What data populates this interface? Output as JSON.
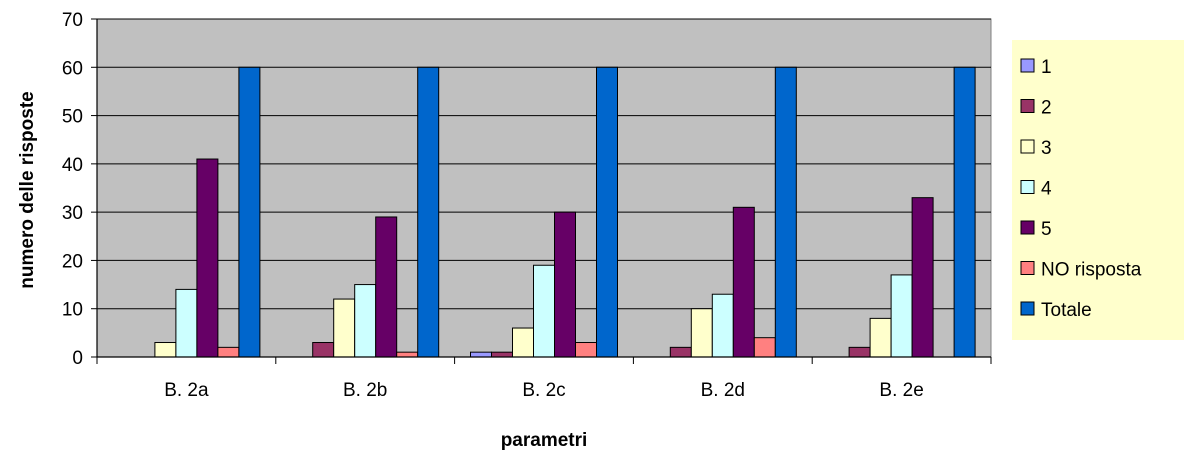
{
  "chart_data": {
    "type": "bar",
    "title": "",
    "xlabel": "parametri",
    "ylabel": "numero delle risposte",
    "ylim": [
      0,
      70
    ],
    "yticks": [
      0,
      10,
      20,
      30,
      40,
      50,
      60,
      70
    ],
    "grid": true,
    "legend_position": "right",
    "categories": [
      "B. 2a",
      "B. 2b",
      "B. 2c",
      "B. 2d",
      "B. 2e"
    ],
    "series": [
      {
        "name": "1",
        "color": "#9999ff",
        "values": [
          0,
          0,
          1,
          0,
          0
        ]
      },
      {
        "name": "2",
        "color": "#993366",
        "values": [
          0,
          3,
          1,
          2,
          2
        ]
      },
      {
        "name": "3",
        "color": "#ffffcc",
        "values": [
          3,
          12,
          6,
          10,
          8
        ]
      },
      {
        "name": "4",
        "color": "#ccffff",
        "values": [
          14,
          15,
          19,
          13,
          17
        ]
      },
      {
        "name": "5",
        "color": "#660066",
        "values": [
          41,
          29,
          30,
          31,
          33
        ]
      },
      {
        "name": "NO risposta",
        "color": "#ff8080",
        "values": [
          2,
          1,
          3,
          4,
          0
        ]
      },
      {
        "name": "Totale",
        "color": "#0066cc",
        "values": [
          60,
          60,
          60,
          60,
          60
        ]
      }
    ],
    "colors": {
      "plot_background": "#c0c0c0",
      "legend_background": "#ffffcc",
      "gridline": "#000000"
    }
  }
}
